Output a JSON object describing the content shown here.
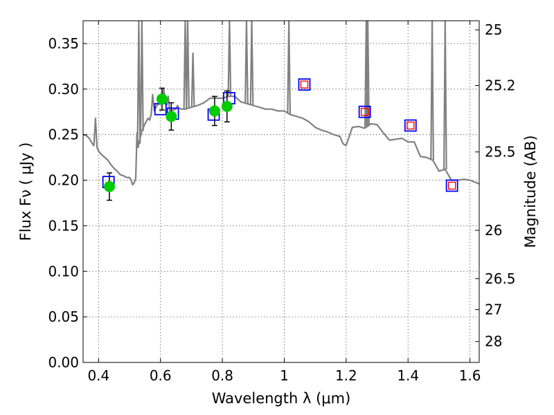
{
  "chart_data": {
    "type": "line",
    "xlabel": "Wavelength  λ (μm)",
    "ylabel": "Flux  Fν  ( μJy )",
    "y2label": "Magnitude (AB)",
    "xlim": [
      0.35,
      1.63
    ],
    "ylim": [
      0.0,
      0.375
    ],
    "grid": true,
    "x_ticks": [
      0.4,
      0.6,
      0.8,
      1.0,
      1.2,
      1.4,
      1.6
    ],
    "x_tick_labels": [
      "0.4",
      "0.6",
      "0.8",
      "1",
      "1.2",
      "1.4",
      "1.6"
    ],
    "y_ticks": [
      0.0,
      0.05,
      0.1,
      0.15,
      0.2,
      0.25,
      0.3,
      0.35
    ],
    "y_tick_labels": [
      "0.00",
      "0.05",
      "0.10",
      "0.15",
      "0.20",
      "0.25",
      "0.30",
      "0.35"
    ],
    "y2_ticks": [
      {
        "label": "25",
        "flux": 0.365
      },
      {
        "label": "25.2",
        "flux": 0.304
      },
      {
        "label": "25.5",
        "flux": 0.231
      },
      {
        "label": "26",
        "flux": 0.145
      },
      {
        "label": "26.5",
        "flux": 0.092
      },
      {
        "label": "27",
        "flux": 0.058
      },
      {
        "label": "28",
        "flux": 0.023
      }
    ],
    "colors": {
      "model": "#808080",
      "observed": "#00cc00",
      "model_box": "#0000ff",
      "prediction_box": "#ff0000",
      "grid": "#555555",
      "error_bar": "#000000"
    },
    "series": [
      {
        "kind": "model-spectrum",
        "x": [
          0.35,
          0.36,
          0.37,
          0.38,
          0.385,
          0.39,
          0.395,
          0.4,
          0.41,
          0.42,
          0.43,
          0.44,
          0.45,
          0.46,
          0.47,
          0.48,
          0.49,
          0.5,
          0.505,
          0.51,
          0.515,
          0.52,
          0.524,
          0.528,
          0.53,
          0.54,
          0.55,
          0.56,
          0.565,
          0.57,
          0.575,
          0.58,
          0.59,
          0.6,
          0.605,
          0.61,
          0.62,
          0.625,
          0.63,
          0.64,
          0.65,
          0.655,
          0.66,
          0.67,
          0.68,
          0.7,
          0.72,
          0.74,
          0.76,
          0.78,
          0.8,
          0.82,
          0.84,
          0.86,
          0.88,
          0.9,
          0.92,
          0.94,
          0.96,
          0.98,
          1.0,
          1.02,
          1.04,
          1.06,
          1.08,
          1.1,
          1.12,
          1.14,
          1.16,
          1.18,
          1.19,
          1.2,
          1.22,
          1.24,
          1.26,
          1.28,
          1.3,
          1.32,
          1.34,
          1.36,
          1.38,
          1.4,
          1.42,
          1.44,
          1.46,
          1.48,
          1.5,
          1.52,
          1.54,
          1.56,
          1.58,
          1.6,
          1.63
        ],
        "y": [
          0.25,
          0.249,
          0.246,
          0.24,
          0.238,
          0.268,
          0.236,
          0.232,
          0.228,
          0.225,
          0.222,
          0.217,
          0.213,
          0.21,
          0.206,
          0.205,
          0.203,
          0.203,
          0.2,
          0.195,
          0.197,
          0.202,
          0.252,
          0.236,
          0.24,
          0.254,
          0.262,
          0.268,
          0.266,
          0.272,
          0.294,
          0.276,
          0.283,
          0.284,
          0.285,
          0.3,
          0.282,
          0.292,
          0.276,
          0.277,
          0.278,
          0.282,
          0.279,
          0.278,
          0.278,
          0.28,
          0.282,
          0.285,
          0.29,
          0.29,
          0.29,
          0.292,
          0.292,
          0.286,
          0.284,
          0.282,
          0.28,
          0.278,
          0.278,
          0.276,
          0.276,
          0.272,
          0.27,
          0.268,
          0.264,
          0.258,
          0.255,
          0.253,
          0.25,
          0.248,
          0.24,
          0.238,
          0.258,
          0.259,
          0.257,
          0.262,
          0.261,
          0.252,
          0.244,
          0.245,
          0.246,
          0.242,
          0.242,
          0.226,
          0.225,
          0.222,
          0.21,
          0.212,
          0.2,
          0.2,
          0.201,
          0.2,
          0.196
        ]
      },
      {
        "kind": "emission-lines",
        "lines": [
          {
            "x": 0.53,
            "peak": 0.375
          },
          {
            "x": 0.54,
            "peak": 0.375
          },
          {
            "x": 0.68,
            "peak": 0.375
          },
          {
            "x": 0.688,
            "peak": 0.375
          },
          {
            "x": 0.705,
            "peak": 0.34
          },
          {
            "x": 0.823,
            "peak": 0.375
          },
          {
            "x": 0.878,
            "peak": 0.375
          },
          {
            "x": 0.895,
            "peak": 0.375
          },
          {
            "x": 1.015,
            "peak": 0.375
          },
          {
            "x": 1.265,
            "peak": 0.375
          },
          {
            "x": 1.27,
            "peak": 0.375
          },
          {
            "x": 1.478,
            "peak": 0.375
          },
          {
            "x": 1.52,
            "peak": 0.375
          }
        ]
      },
      {
        "kind": "observed-flux",
        "points": [
          {
            "x": 0.435,
            "y": 0.193,
            "err": 0.015
          },
          {
            "x": 0.605,
            "y": 0.289,
            "err": 0.012
          },
          {
            "x": 0.635,
            "y": 0.27,
            "err": 0.015
          },
          {
            "x": 0.775,
            "y": 0.276,
            "err": 0.016
          },
          {
            "x": 0.815,
            "y": 0.281,
            "err": 0.017
          }
        ]
      },
      {
        "kind": "model-fluxes",
        "points": [
          {
            "x": 0.432,
            "y": 0.198
          },
          {
            "x": 0.6,
            "y": 0.278
          },
          {
            "x": 0.64,
            "y": 0.273
          },
          {
            "x": 0.772,
            "y": 0.272
          },
          {
            "x": 0.822,
            "y": 0.29
          },
          {
            "x": 1.065,
            "y": 0.305
          },
          {
            "x": 1.26,
            "y": 0.275
          },
          {
            "x": 1.408,
            "y": 0.26
          },
          {
            "x": 1.542,
            "y": 0.194
          }
        ]
      },
      {
        "kind": "predicted-fluxes",
        "points": [
          {
            "x": 1.065,
            "y": 0.305
          },
          {
            "x": 1.26,
            "y": 0.275
          },
          {
            "x": 1.408,
            "y": 0.26
          },
          {
            "x": 1.542,
            "y": 0.194
          }
        ]
      }
    ]
  }
}
